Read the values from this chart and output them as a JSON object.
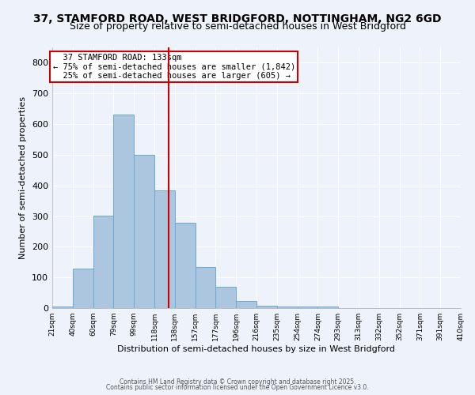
{
  "title_line1": "37, STAMFORD ROAD, WEST BRIDGFORD, NOTTINGHAM, NG2 6GD",
  "title_line2": "Size of property relative to semi-detached houses in West Bridgford",
  "xlabel": "Distribution of semi-detached houses by size in West Bridgford",
  "ylabel": "Number of semi-detached properties",
  "footer_line1": "Contains HM Land Registry data © Crown copyright and database right 2025.",
  "footer_line2": "Contains public sector information licensed under the Open Government Licence v3.0.",
  "bin_labels": [
    "21sqm",
    "40sqm",
    "60sqm",
    "79sqm",
    "99sqm",
    "118sqm",
    "138sqm",
    "157sqm",
    "177sqm",
    "196sqm",
    "216sqm",
    "235sqm",
    "254sqm",
    "274sqm",
    "293sqm",
    "313sqm",
    "332sqm",
    "352sqm",
    "371sqm",
    "391sqm",
    "410sqm"
  ],
  "counts": [
    5,
    128,
    301,
    632,
    499,
    383,
    278,
    133,
    70,
    23,
    9,
    5,
    4,
    5,
    0,
    0,
    0,
    0,
    0,
    0
  ],
  "bar_color": "#adc6e0",
  "bar_edge_color": "#6aaad4",
  "vline_bin_index": 5.7,
  "vline_color": "#cc0000",
  "annotation_text": "  37 STAMFORD ROAD: 133sqm\n← 75% of semi-detached houses are smaller (1,842)\n  25% of semi-detached houses are larger (605) →",
  "annotation_box_color": "#ffffff",
  "annotation_border_color": "#cc0000",
  "ylim": [
    0,
    850
  ],
  "yticks": [
    0,
    100,
    200,
    300,
    400,
    500,
    600,
    700,
    800
  ],
  "bg_color": "#eef2fa",
  "grid_color": "#ffffff",
  "title_fontsize": 10,
  "subtitle_fontsize": 9,
  "ann_fontsize": 7.5
}
